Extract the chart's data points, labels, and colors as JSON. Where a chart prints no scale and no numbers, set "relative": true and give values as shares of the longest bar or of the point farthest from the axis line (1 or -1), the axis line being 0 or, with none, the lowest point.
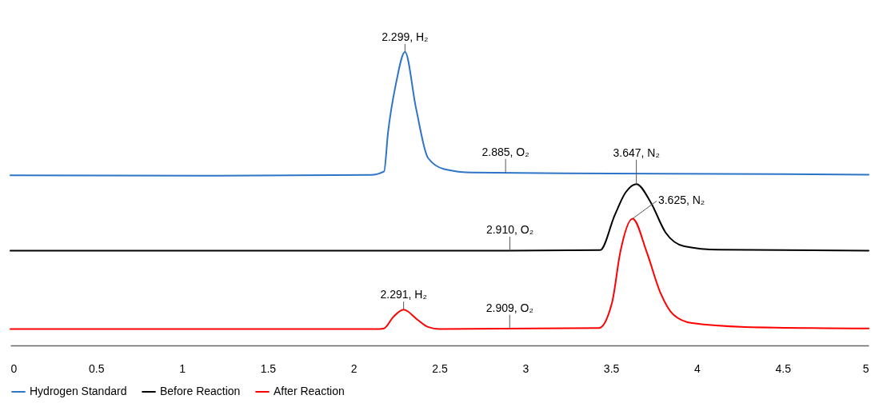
{
  "chart_data": {
    "type": "line",
    "relative": true,
    "xlim": [
      0,
      5
    ],
    "xticks": [
      0,
      0.5,
      1,
      1.5,
      2,
      2.5,
      3,
      3.5,
      4,
      4.5,
      5
    ],
    "grid": false,
    "legend": "bottom",
    "series": [
      {
        "name": "Hydrogen Standard",
        "color": "#2e75c8",
        "x": [
          0,
          1.2,
          2.1,
          2.177,
          2.2,
          2.247,
          2.299,
          2.363,
          2.433,
          2.527,
          2.696,
          3.5,
          4.5,
          5
        ],
        "values": [
          0.58,
          0.578,
          0.581,
          0.593,
          0.725,
          0.894,
          1,
          0.809,
          0.639,
          0.601,
          0.589,
          0.586,
          0.584,
          0.582
        ]
      },
      {
        "name": "Before Reaction",
        "color": "#000000",
        "x": [
          0,
          2.9,
          3.436,
          3.521,
          3.584,
          3.647,
          3.731,
          3.817,
          3.926,
          4.128,
          5
        ],
        "values": [
          0.323,
          0.323,
          0.325,
          0.444,
          0.521,
          0.55,
          0.487,
          0.385,
          0.338,
          0.326,
          0.323
        ]
      },
      {
        "name": "After Reaction",
        "color": "#ff0000",
        "x": [
          0,
          2.15,
          2.177,
          2.231,
          2.291,
          2.371,
          2.433,
          2.5,
          3.428,
          3.506,
          3.553,
          3.625,
          3.708,
          3.786,
          3.863,
          3.972,
          4.28,
          5
        ],
        "values": [
          0.056,
          0.056,
          0.058,
          0.097,
          0.122,
          0.088,
          0.063,
          0.056,
          0.059,
          0.148,
          0.317,
          0.432,
          0.317,
          0.181,
          0.105,
          0.076,
          0.063,
          0.058
        ]
      }
    ],
    "annotations": [
      {
        "text": "2.299, H₂",
        "x": 2.299,
        "y": 1
      },
      {
        "text": "2.885, O₂",
        "x": 2.885,
        "y": 0.587
      },
      {
        "text": "3.647, N₂",
        "x": 3.647,
        "y": 0.55
      },
      {
        "text": "3.625, N₂",
        "x": 3.625,
        "y": 0.432
      },
      {
        "text": "2.910, O₂",
        "x": 2.91,
        "y": 0.323
      },
      {
        "text": "2.291, H₂",
        "x": 2.291,
        "y": 0.122
      },
      {
        "text": "2.909, O₂",
        "x": 2.909,
        "y": 0.057
      }
    ]
  }
}
